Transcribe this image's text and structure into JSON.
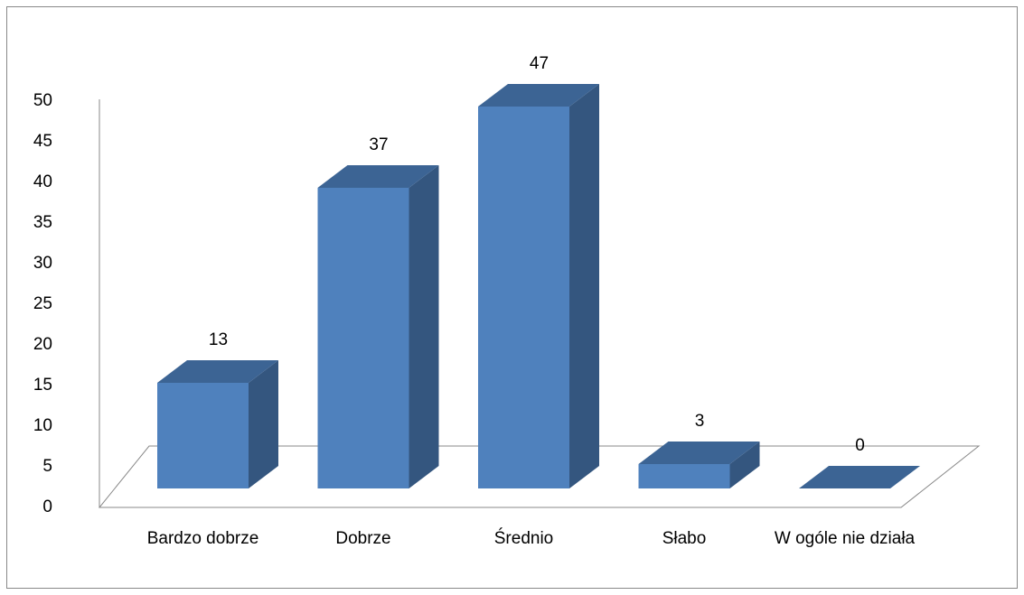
{
  "chart_data": {
    "type": "bar3d",
    "categories": [
      "Bardzo dobrze",
      "Dobrze",
      "Średnio",
      "Słabo",
      "W ogóle nie działa"
    ],
    "values": [
      13,
      37,
      47,
      3,
      0
    ],
    "color": "#4f81bd",
    "ylim": [
      0,
      50
    ],
    "yticks": [
      0,
      5,
      10,
      15,
      20,
      25,
      30,
      35,
      40,
      45,
      50
    ],
    "grid": false
  }
}
